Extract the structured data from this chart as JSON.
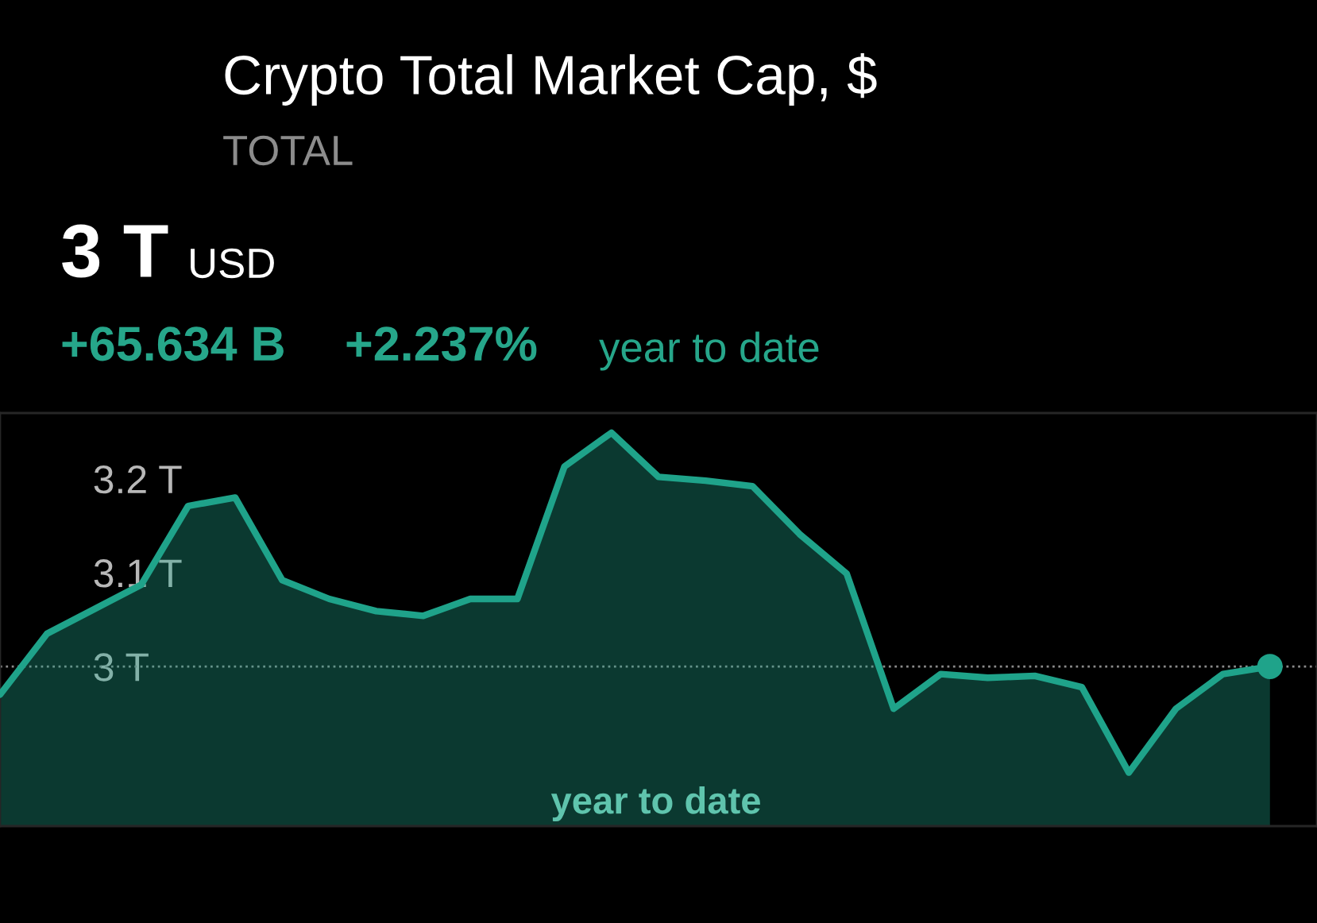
{
  "chart_data": {
    "type": "area",
    "title": "Crypto Total Market Cap, $",
    "subtitle": "TOTAL",
    "annotations": [
      "3 T",
      "USD",
      "+65.634 B",
      "+2.237%",
      "year to date",
      "year to date"
    ],
    "categories": [
      null,
      null,
      null,
      null,
      null,
      null,
      null,
      null,
      null,
      null,
      null,
      null,
      null,
      null,
      null,
      null,
      null,
      null,
      null,
      null,
      null,
      null,
      null,
      null,
      null,
      null,
      null,
      null
    ],
    "series": [
      {
        "color": "#1fa38a",
        "values": [
          2.97,
          3.035,
          3.061,
          3.087,
          3.171,
          3.18,
          3.092,
          3.072,
          3.059,
          3.054,
          3.072,
          3.072,
          3.213,
          3.249,
          3.202,
          3.198,
          3.192,
          3.141,
          3.099,
          2.955,
          2.992,
          2.988,
          2.99,
          2.978,
          2.887,
          2.955,
          2.992,
          3.0
        ]
      },
      {
        "type": "scatter",
        "marker": "circle",
        "color": "#1fa38a",
        "values": [
          null,
          null,
          null,
          null,
          null,
          null,
          null,
          null,
          null,
          null,
          null,
          null,
          null,
          null,
          null,
          null,
          null,
          null,
          null,
          null,
          null,
          null,
          null,
          null,
          null,
          null,
          null,
          3.0
        ]
      }
    ],
    "ylim": [
      2.83,
      3.27
    ],
    "yticks": [
      {
        "value": 3.0,
        "label": "3 T"
      },
      {
        "value": 3.1,
        "label": "3.1 T"
      },
      {
        "value": 3.2,
        "label": "3.2 T"
      }
    ],
    "ref_lines": [
      {
        "axis": "y",
        "value": 3.0,
        "color": "#8a8a8a",
        "line_style": "dotted"
      }
    ],
    "grid": false,
    "legend": false,
    "line_style": "solid"
  }
}
